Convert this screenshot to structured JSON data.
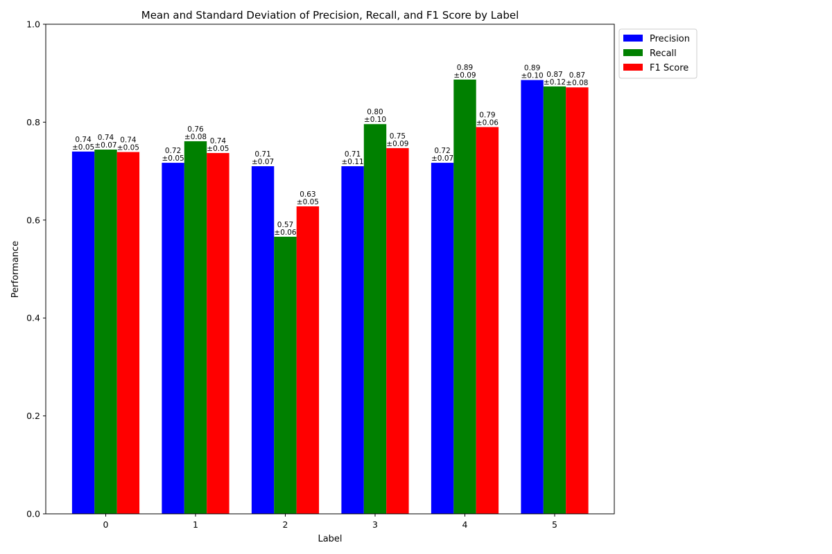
{
  "chart_data": {
    "type": "bar",
    "title": "Mean and Standard Deviation of Precision, Recall, and F1 Score by Label",
    "xlabel": "Label",
    "ylabel": "Performance",
    "categories": [
      "0",
      "1",
      "2",
      "3",
      "4",
      "5"
    ],
    "ylim": [
      0,
      1
    ],
    "yticks": [
      0.0,
      0.2,
      0.4,
      0.6,
      0.8,
      1.0
    ],
    "ytick_labels": [
      "0.0",
      "0.2",
      "0.4",
      "0.6",
      "0.8",
      "1.0"
    ],
    "grid": false,
    "legend_position": "outside top-right",
    "series": [
      {
        "name": "Precision",
        "color": "#0000ff",
        "values": [
          0.74,
          0.717,
          0.71,
          0.71,
          0.717,
          0.886
        ],
        "value_labels": [
          "0.74",
          "0.72",
          "0.71",
          "0.71",
          "0.72",
          "0.89"
        ],
        "std_labels": [
          "±0.05",
          "±0.05",
          "±0.07",
          "±0.11",
          "±0.07",
          "±0.10"
        ]
      },
      {
        "name": "Recall",
        "color": "#008000",
        "values": [
          0.744,
          0.761,
          0.566,
          0.796,
          0.887,
          0.873
        ],
        "value_labels": [
          "0.74",
          "0.76",
          "0.57",
          "0.80",
          "0.89",
          "0.87"
        ],
        "std_labels": [
          "±0.07",
          "±0.08",
          "±0.06",
          "±0.10",
          "±0.09",
          "±0.12"
        ]
      },
      {
        "name": "F1 Score",
        "color": "#ff0000",
        "values": [
          0.739,
          0.737,
          0.628,
          0.747,
          0.79,
          0.871
        ],
        "value_labels": [
          "0.74",
          "0.74",
          "0.63",
          "0.75",
          "0.79",
          "0.87"
        ],
        "std_labels": [
          "±0.05",
          "±0.05",
          "±0.05",
          "±0.09",
          "±0.06",
          "±0.08"
        ]
      }
    ]
  }
}
